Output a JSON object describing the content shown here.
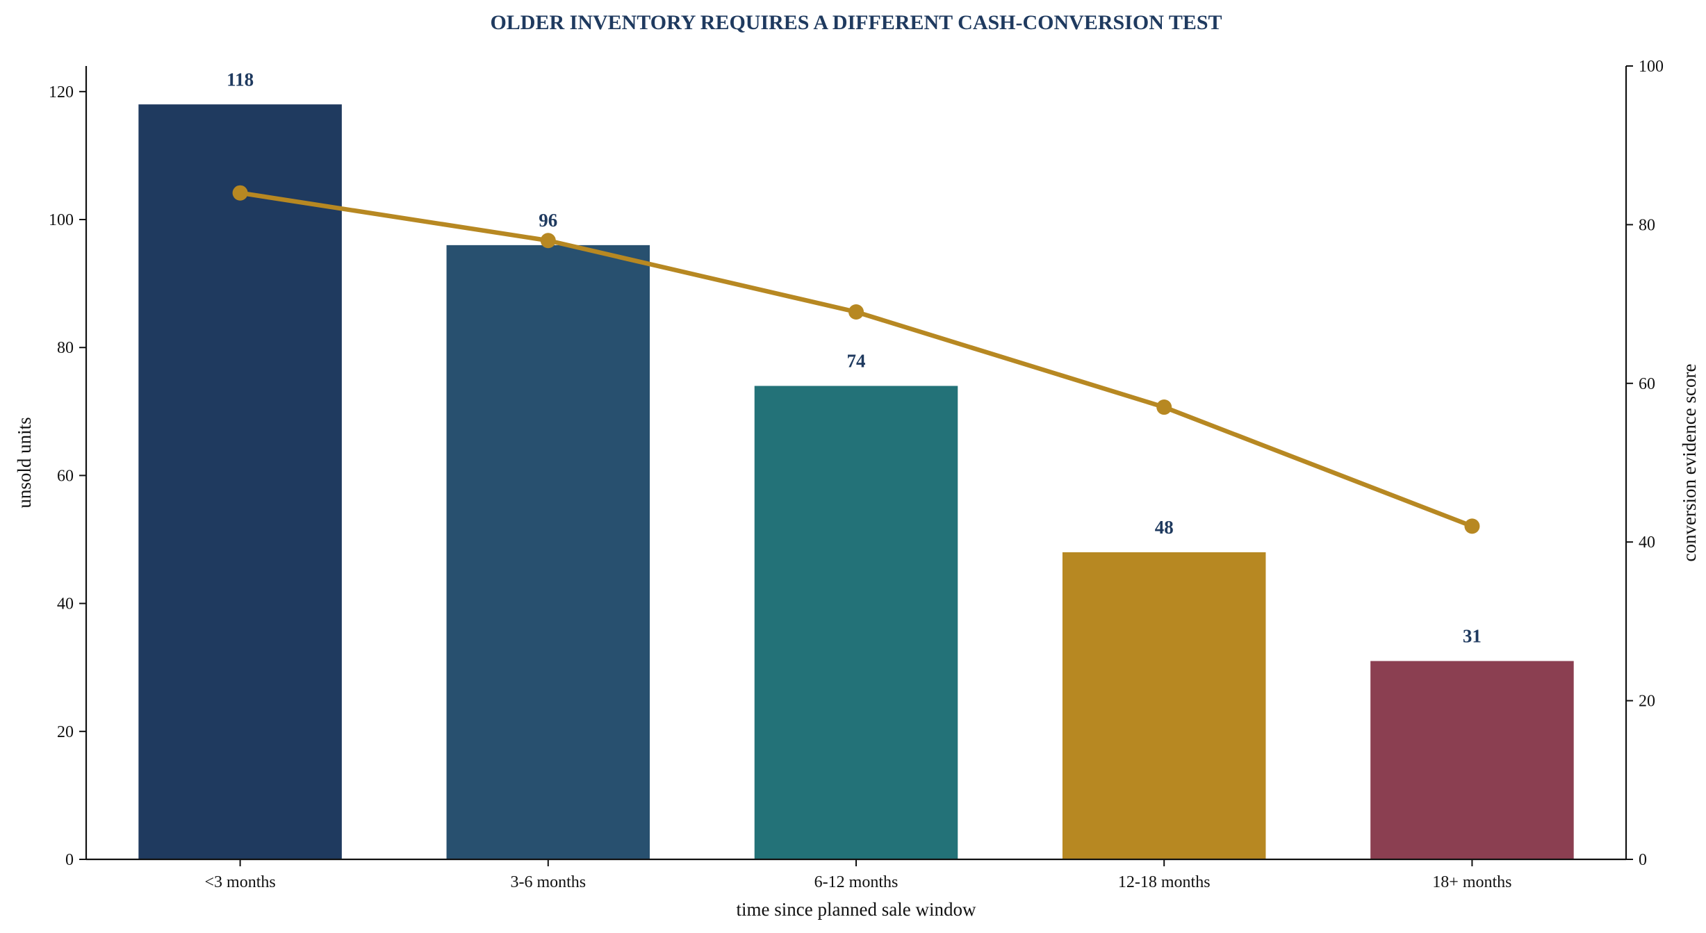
{
  "chart_data": {
    "type": "bar",
    "title": "OLDER INVENTORY REQUIRES A DIFFERENT CASH-CONVERSION TEST",
    "xlabel": "time since planned sale window",
    "ylabel": "unsold units",
    "y2label": "conversion evidence score",
    "categories": [
      "<3 months",
      "3-6 months",
      "6-12 months",
      "12-18 months",
      "18+ months"
    ],
    "values": [
      118,
      96,
      74,
      48,
      31
    ],
    "data_labels": [
      "118",
      "96",
      "74",
      "48",
      "31"
    ],
    "bar_colors": [
      "#1f3a5f",
      "#28506f",
      "#237278",
      "#b78822",
      "#8b3f51"
    ],
    "line": {
      "axis": "right",
      "values": [
        84,
        78,
        69,
        57,
        42
      ],
      "color": "#b78822"
    },
    "ylim": [
      0,
      124
    ],
    "yticks": [
      "0",
      "20",
      "40",
      "60",
      "80",
      "100",
      "120"
    ],
    "ytick_values": [
      0,
      20,
      40,
      60,
      80,
      100,
      120
    ],
    "y2lim": [
      0,
      100
    ],
    "y2ticks": [
      "0",
      "20",
      "40",
      "60",
      "80",
      "100"
    ],
    "y2tick_values": [
      0,
      20,
      40,
      60,
      80,
      100
    ],
    "grid": false,
    "title_color": "#1f3a5f",
    "label_color": "#1f3a5f"
  }
}
